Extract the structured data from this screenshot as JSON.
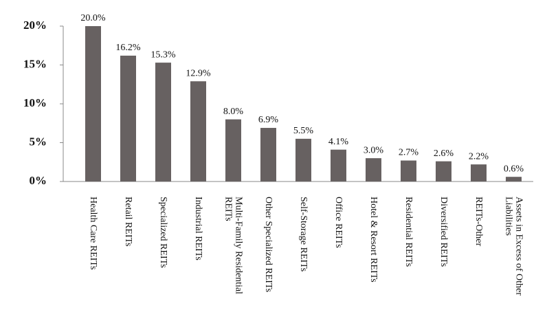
{
  "chart_data": {
    "type": "bar",
    "categories": [
      "Health Care REITs",
      "Retail REITs",
      "Specialized REITs",
      "Industrial REITs",
      "Multi-Family Residential REITs",
      "Other Specialized REITs",
      "Self-Storage REITs",
      "Office REITs",
      "Hotel & Resort REITs",
      "Residential REITs",
      "Diversified REITs",
      "REITs-Other",
      "Assets in Excess of Other Liabilities"
    ],
    "values": [
      20.0,
      16.2,
      15.3,
      12.9,
      8.0,
      6.9,
      5.5,
      4.1,
      3.0,
      2.7,
      2.6,
      2.2,
      0.6
    ],
    "value_labels": [
      "20.0%",
      "16.2%",
      "15.3%",
      "12.9%",
      "8.0%",
      "6.9%",
      "5.5%",
      "4.1%",
      "3.0%",
      "2.7%",
      "2.6%",
      "2.2%",
      "0.6%"
    ],
    "color": "#676161",
    "ylim": [
      0,
      20
    ],
    "yticks": [
      {
        "value": 0,
        "label": "0%"
      },
      {
        "value": 5,
        "label": "5%"
      },
      {
        "value": 10,
        "label": "10%"
      },
      {
        "value": 15,
        "label": "15%"
      },
      {
        "value": 20,
        "label": "20%"
      }
    ],
    "grid": false
  }
}
